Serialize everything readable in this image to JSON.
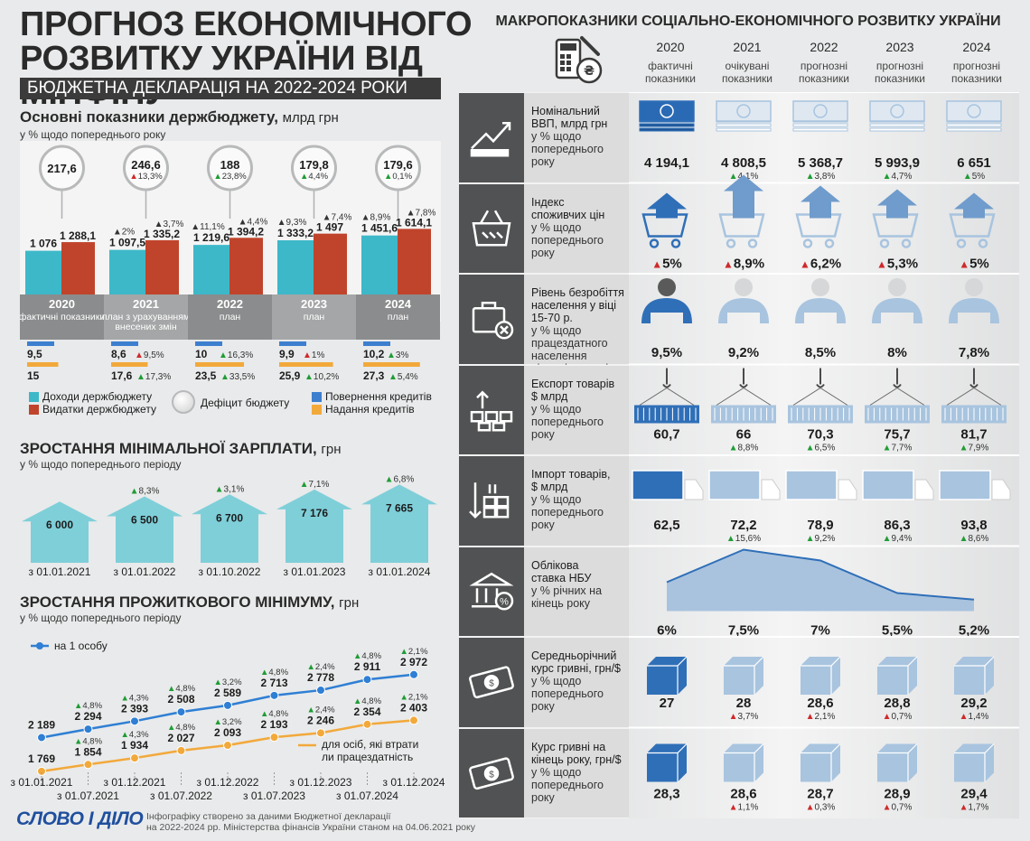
{
  "header": {
    "title_line1": "ПРОГНОЗ ЕКОНОМІЧНОГО",
    "title_line2": "РОЗВИТКУ УКРАЇНИ ВІД МІНФІНУ",
    "subtitle": "БЮДЖЕТНА ДЕКЛАРАЦІЯ НА 2022-2024 РОКИ",
    "watermark": "СЛОВО І ДІЛО"
  },
  "budget": {
    "title": "Основні показники держбюджету,",
    "unit": "млрд грн",
    "note": "у % щодо попереднього року",
    "colors": {
      "income": "#3db8c9",
      "expense": "#c0442b",
      "repay": "#3d7fcf",
      "credit": "#f2a93b"
    },
    "years": [
      {
        "year": "2020",
        "label": "фактичні показники",
        "deficit": "217,6",
        "deficit_chg": "",
        "deficit_dir": "",
        "income": "1 076",
        "income_v": 1076,
        "income_chg": "",
        "income_dir": "",
        "expense": "1 288,1",
        "expense_v": 1288.1,
        "expense_chg": "",
        "expense_dir": "",
        "repay": "9,5",
        "repay_v": 9.5,
        "repay_chg": "",
        "repay_dir": "",
        "credit": "15",
        "credit_v": 15,
        "credit_chg": "",
        "credit_dir": ""
      },
      {
        "year": "2021",
        "label": "план з урахуванням внесених змін",
        "deficit": "246,6",
        "deficit_chg": "13,3%",
        "deficit_dir": "dn",
        "income": "1 097,5",
        "income_v": 1097.5,
        "income_chg": "2%",
        "income_dir": "up",
        "expense": "1 335,2",
        "expense_v": 1335.2,
        "expense_chg": "3,7%",
        "expense_dir": "up",
        "repay": "8,6",
        "repay_v": 8.6,
        "repay_chg": "9,5%",
        "repay_dir": "dn",
        "credit": "17,6",
        "credit_v": 17.6,
        "credit_chg": "17,3%",
        "credit_dir": "up"
      },
      {
        "year": "2022",
        "label": "план",
        "deficit": "188",
        "deficit_chg": "23,8%",
        "deficit_dir": "up",
        "income": "1 219,6",
        "income_v": 1219.6,
        "income_chg": "11,1%",
        "income_dir": "up",
        "expense": "1 394,2",
        "expense_v": 1394.2,
        "expense_chg": "4,4%",
        "expense_dir": "up",
        "repay": "10",
        "repay_v": 10,
        "repay_chg": "16,3%",
        "repay_dir": "up",
        "credit": "23,5",
        "credit_v": 23.5,
        "credit_chg": "33,5%",
        "credit_dir": "up"
      },
      {
        "year": "2023",
        "label": "план",
        "deficit": "179,8",
        "deficit_chg": "4,4%",
        "deficit_dir": "up",
        "income": "1 333,2",
        "income_v": 1333.2,
        "income_chg": "9,3%",
        "income_dir": "up",
        "expense": "1 497",
        "expense_v": 1497,
        "expense_chg": "7,4%",
        "expense_dir": "up",
        "repay": "9,9",
        "repay_v": 9.9,
        "repay_chg": "1%",
        "repay_dir": "dn",
        "credit": "25,9",
        "credit_v": 25.9,
        "credit_chg": "10,2%",
        "credit_dir": "up"
      },
      {
        "year": "2024",
        "label": "план",
        "deficit": "179,6",
        "deficit_chg": "0,1%",
        "deficit_dir": "up",
        "income": "1 451,6",
        "income_v": 1451.6,
        "income_chg": "8,9%",
        "income_dir": "up",
        "expense": "1 614,1",
        "expense_v": 1614.1,
        "expense_chg": "7,8%",
        "expense_dir": "up",
        "repay": "10,2",
        "repay_v": 10.2,
        "repay_chg": "3%",
        "repay_dir": "up",
        "credit": "27,3",
        "credit_v": 27.3,
        "credit_chg": "5,4%",
        "credit_dir": "up"
      }
    ],
    "legend": {
      "income": "Доходи держбюджету",
      "expense": "Видатки держбюджету",
      "deficit": "Дефіцит бюджету",
      "repay": "Повернення кредитів",
      "credit": "Надання кредитів"
    }
  },
  "wage": {
    "title": "ЗРОСТАННЯ МІНІМАЛЬНОЇ ЗАРПЛАТИ,",
    "unit": "грн",
    "note": "у % щодо попереднього періоду",
    "color": "#7fcfd9",
    "items": [
      {
        "value": "6 000",
        "v": 6000,
        "chg": "",
        "date": "з 01.01.2021"
      },
      {
        "value": "6 500",
        "v": 6500,
        "chg": "8,3%",
        "date": "з 01.01.2022"
      },
      {
        "value": "6 700",
        "v": 6700,
        "chg": "3,1%",
        "date": "з 01.10.2022"
      },
      {
        "value": "7 176",
        "v": 7176,
        "chg": "7,1%",
        "date": "з 01.01.2023"
      },
      {
        "value": "7 665",
        "v": 7665,
        "chg": "6,8%",
        "date": "з 01.01.2024"
      }
    ]
  },
  "subsistence": {
    "title": "ЗРОСТАННЯ ПРОЖИТКОВОГО МІНІМУМУ,",
    "unit": "грн",
    "note": "у % щодо попереднього періоду",
    "series": [
      {
        "name": "на 1 особу",
        "color": "#2f7fd4",
        "values": [
          "2 189",
          "2 294",
          "2 393",
          "2 508",
          "2 589",
          "2 713",
          "2 778",
          "2 911",
          "2 972"
        ],
        "v": [
          2189,
          2294,
          2393,
          2508,
          2589,
          2713,
          2778,
          2911,
          2972
        ],
        "chg": [
          "",
          "4,8%",
          "4,3%",
          "4,8%",
          "3,2%",
          "4,8%",
          "2,4%",
          "4,8%",
          "2,1%"
        ]
      },
      {
        "name": "для осіб, які втратили працездатність",
        "color": "#f2a93b",
        "values": [
          "1 769",
          "1 854",
          "1 934",
          "2 027",
          "2 093",
          "2 193",
          "2 246",
          "2 354",
          "2 403"
        ],
        "v": [
          1769,
          1854,
          1934,
          2027,
          2093,
          2193,
          2246,
          2354,
          2403
        ],
        "chg": [
          "",
          "4,8%",
          "4,3%",
          "4,8%",
          "3,2%",
          "4,8%",
          "2,4%",
          "4,8%",
          "2,1%"
        ]
      }
    ],
    "dates_top": [
      "з 01.01.2021",
      "з 01.12.2021",
      "з 01.12.2022",
      "з 01.12.2023",
      "з 01.12.2024"
    ],
    "dates_bottom": [
      "з 01.07.2021",
      "з 01.07.2022",
      "з 01.07.2023",
      "з 01.07.2024"
    ]
  },
  "footer": {
    "logo": "СЛОВО І ДІЛО",
    "note_line1": "Інфографіку створено за даними Бюджетної декларації",
    "note_line2": "на 2022-2024 рр. Міністерства фінансів України станом на 04.06.2021 року"
  },
  "macro": {
    "title": "МАКРОПОКАЗНИКИ СОЦІАЛЬНО-ЕКОНОМІЧНОГО РОЗВИТКУ УКРАЇНИ",
    "years": [
      {
        "year": "2020",
        "label": "фактичні показники"
      },
      {
        "year": "2021",
        "label": "очікувані показники"
      },
      {
        "year": "2022",
        "label": "прогнозні показники"
      },
      {
        "year": "2023",
        "label": "прогнозні показники"
      },
      {
        "year": "2024",
        "label": "прогнозні показники"
      }
    ],
    "rows": [
      {
        "id": "gdp",
        "icon": "growth-chart-icon",
        "label_line1": "Номінальний",
        "label_line2": "ВВП, млрд грн",
        "note": "у % щодо попереднього року",
        "values": [
          "4 194,1",
          "4 808,5",
          "5 368,7",
          "5 993,9",
          "6 651"
        ],
        "chg": [
          "",
          "4,1%",
          "3,8%",
          "4,7%",
          "5%"
        ],
        "dir": [
          "",
          "up",
          "up",
          "up",
          "up"
        ]
      },
      {
        "id": "cpi",
        "icon": "basket-icon",
        "label_line1": "Індекс",
        "label_line2": "споживчих цін",
        "note": "у % щодо попереднього року",
        "values": [
          "5%",
          "8,9%",
          "6,2%",
          "5,3%",
          "5%"
        ],
        "chg": [
          "",
          "",
          "",
          "",
          ""
        ],
        "dir": [
          "dn",
          "dn",
          "dn",
          "dn",
          "dn"
        ]
      },
      {
        "id": "unemp",
        "icon": "briefcase-icon",
        "label_line1": "Рівень безробіття",
        "label_line2": "населення у віці 15-70 р.",
        "note": "у % щодо працездатного населення відповідного віку",
        "values": [
          "9,5%",
          "9,2%",
          "8,5%",
          "8%",
          "7,8%"
        ],
        "chg": [
          "",
          "",
          "",
          "",
          ""
        ],
        "dir": [
          "",
          "",
          "",
          "",
          ""
        ]
      },
      {
        "id": "export",
        "icon": "export-boxes-icon",
        "label_line1": "Експорт товарів",
        "label_line2": "$ млрд",
        "note": "у % щодо попереднього року",
        "values": [
          "60,7",
          "66",
          "70,3",
          "75,7",
          "81,7"
        ],
        "chg": [
          "",
          "8,8%",
          "6,5%",
          "7,7%",
          "7,9%"
        ],
        "dir": [
          "",
          "up",
          "up",
          "up",
          "up"
        ]
      },
      {
        "id": "import",
        "icon": "import-boxes-icon",
        "label_line1": "Імпорт товарів,",
        "label_line2": "$ млрд",
        "note": "у % щодо попереднього року",
        "values": [
          "62,5",
          "72,2",
          "78,9",
          "86,3",
          "93,8"
        ],
        "chg": [
          "",
          "15,6%",
          "9,2%",
          "9,4%",
          "8,6%"
        ],
        "dir": [
          "",
          "up",
          "up",
          "up",
          "up"
        ]
      },
      {
        "id": "rate",
        "icon": "bank-icon",
        "label_line1": "Облікова",
        "label_line2": "ставка НБУ",
        "note": "у % річних на кінець року",
        "values": [
          "6%",
          "7,5%",
          "7%",
          "5,5%",
          "5,2%"
        ],
        "v": [
          6,
          7.5,
          7,
          5.5,
          5.2
        ],
        "chg": [
          "",
          "",
          "",
          "",
          ""
        ],
        "dir": [
          "",
          "",
          "",
          "",
          ""
        ]
      },
      {
        "id": "fxavg",
        "icon": "banknote-icon",
        "label_line1": "Середньорічний",
        "label_line2": "курс гривні, грн/$",
        "note": "у % щодо попереднього року",
        "values": [
          "27",
          "28",
          "28,6",
          "28,8",
          "29,2"
        ],
        "chg": [
          "",
          "3,7%",
          "2,1%",
          "0,7%",
          "1,4%"
        ],
        "dir": [
          "",
          "dn",
          "dn",
          "dn",
          "dn"
        ]
      },
      {
        "id": "fxend",
        "icon": "banknote-icon",
        "label_line1": "Курс гривні на",
        "label_line2": "кінець року, грн/$",
        "note": "у % щодо попереднього року",
        "values": [
          "28,3",
          "28,6",
          "28,7",
          "28,9",
          "29,4"
        ],
        "chg": [
          "",
          "1,1%",
          "0,3%",
          "0,7%",
          "1,7%"
        ],
        "dir": [
          "",
          "dn",
          "dn",
          "dn",
          "dn"
        ]
      }
    ]
  }
}
